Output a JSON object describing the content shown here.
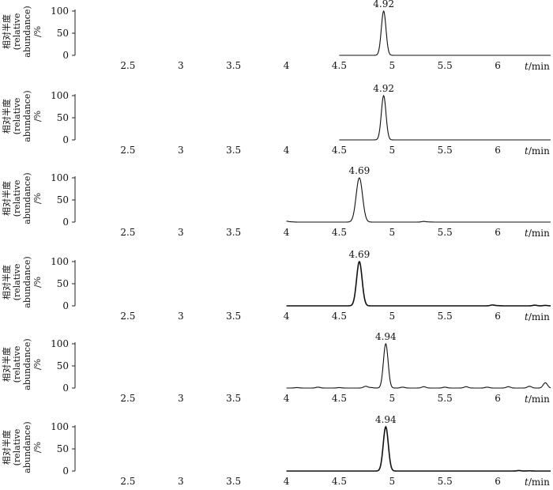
{
  "chart_data": {
    "type": "line",
    "layout": "stacked-panels",
    "xlabel_italic": "t",
    "xlabel_unit": "/min",
    "ylabel": {
      "line1": "相对半度",
      "line2": "(relative",
      "line3": "abundance)",
      "line4": "/%"
    },
    "xticks": [
      "2.5",
      "3",
      "3.5",
      "4",
      "4.5",
      "5",
      "5.5",
      "6"
    ],
    "xlim": [
      2.0,
      6.5
    ],
    "yticks": [
      "0",
      "50",
      "100"
    ],
    "ylim": [
      0,
      100
    ],
    "grid": false,
    "panels": [
      {
        "trace_start": 4.5,
        "peaks": [
          {
            "rt": 4.92,
            "label": "4.92",
            "height": 100,
            "sigma": 0.022
          }
        ],
        "noise": []
      },
      {
        "trace_start": 4.5,
        "peaks": [
          {
            "rt": 4.92,
            "label": "4.92",
            "height": 100,
            "sigma": 0.022
          }
        ],
        "noise": []
      },
      {
        "trace_start": 4.0,
        "peaks": [
          {
            "rt": 4.69,
            "label": "4.69",
            "height": 100,
            "sigma": 0.03
          }
        ],
        "noise": [
          [
            4.0,
            2
          ],
          [
            4.05,
            0.5
          ],
          [
            5.3,
            1.5
          ],
          [
            5.35,
            0.3
          ]
        ]
      },
      {
        "trace_start": 4.0,
        "peaks": [
          {
            "rt": 4.69,
            "label": "4.69",
            "height": 100,
            "sigma": 0.026
          }
        ],
        "noise": [
          [
            5.95,
            2
          ],
          [
            6.0,
            0.5
          ],
          [
            6.35,
            1.5
          ],
          [
            6.45,
            1
          ]
        ]
      },
      {
        "trace_start": 4.0,
        "peaks": [
          {
            "rt": 4.94,
            "label": "4.94",
            "height": 100,
            "sigma": 0.022
          }
        ],
        "noise": [
          [
            4.1,
            1
          ],
          [
            4.3,
            2
          ],
          [
            4.5,
            1
          ],
          [
            4.75,
            4
          ],
          [
            4.8,
            1
          ],
          [
            5.1,
            2
          ],
          [
            5.3,
            3
          ],
          [
            5.5,
            2
          ],
          [
            5.7,
            3
          ],
          [
            5.9,
            2
          ],
          [
            6.1,
            3
          ],
          [
            6.3,
            4
          ],
          [
            6.45,
            12
          ]
        ]
      },
      {
        "trace_start": 4.0,
        "peaks": [
          {
            "rt": 4.94,
            "label": "4.94",
            "height": 100,
            "sigma": 0.024
          }
        ],
        "noise": [
          [
            6.2,
            1
          ],
          [
            6.3,
            0.5
          ]
        ]
      }
    ]
  }
}
